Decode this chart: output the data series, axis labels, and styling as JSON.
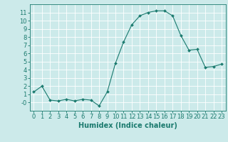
{
  "x": [
    0,
    1,
    2,
    3,
    4,
    5,
    6,
    7,
    8,
    9,
    10,
    11,
    12,
    13,
    14,
    15,
    16,
    17,
    18,
    19,
    20,
    21,
    22,
    23
  ],
  "y": [
    1.3,
    2.0,
    0.3,
    0.2,
    0.4,
    0.2,
    0.4,
    0.3,
    -0.4,
    1.3,
    4.8,
    7.4,
    9.5,
    10.6,
    11.0,
    11.2,
    11.2,
    10.6,
    8.2,
    6.4,
    6.5,
    4.3,
    4.4,
    4.7
  ],
  "line_color": "#1a7a6e",
  "marker": "D",
  "marker_size": 2.0,
  "bg_color": "#cceaea",
  "grid_color": "#ffffff",
  "xlabel": "Humidex (Indice chaleur)",
  "xlabel_color": "#1a7a6e",
  "xlabel_fontsize": 7,
  "tick_color": "#1a7a6e",
  "tick_fontsize": 6,
  "ylim": [
    -1,
    12
  ],
  "xlim": [
    -0.5,
    23.5
  ],
  "yticks": [
    0,
    1,
    2,
    3,
    4,
    5,
    6,
    7,
    8,
    9,
    10,
    11
  ],
  "ytick_labels": [
    "-0",
    "1",
    "2",
    "3",
    "4",
    "5",
    "6",
    "7",
    "8",
    "9",
    "10",
    "11"
  ],
  "xticks": [
    0,
    1,
    2,
    3,
    4,
    5,
    6,
    7,
    8,
    9,
    10,
    11,
    12,
    13,
    14,
    15,
    16,
    17,
    18,
    19,
    20,
    21,
    22,
    23
  ]
}
